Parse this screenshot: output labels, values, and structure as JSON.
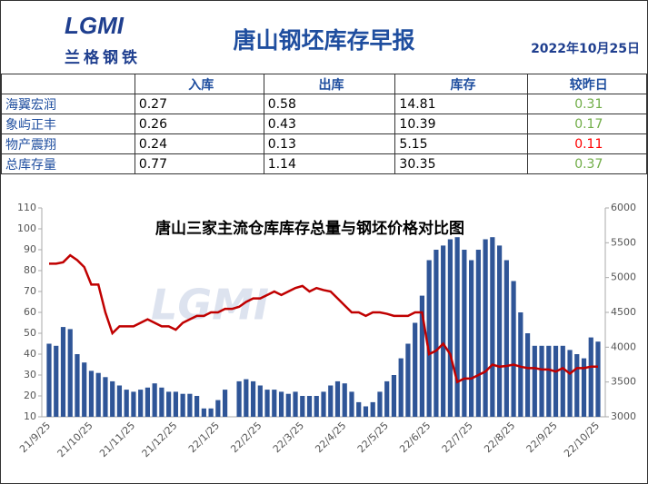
{
  "header": {
    "logo": "LGMI",
    "brand": "兰格钢铁",
    "title": "唐山钢坯库存早报",
    "date": "2022年10月25日"
  },
  "table": {
    "columns": [
      "入库",
      "出库",
      "库存",
      "较昨日"
    ],
    "rows": [
      [
        "海翼宏润",
        "0.27",
        "0.58",
        "14.81",
        "0.31"
      ],
      [
        "象屿正丰",
        "0.26",
        "0.43",
        "10.39",
        "0.17"
      ],
      [
        "物产震翔",
        "0.24",
        "0.13",
        "5.15",
        "0.11"
      ],
      [
        "总库存量",
        "0.77",
        "1.14",
        "30.35",
        "0.37"
      ]
    ],
    "change_colors": [
      "#70ad47",
      "#70ad47",
      "#ff0000",
      "#70ad47"
    ]
  },
  "chart_data": {
    "type": "combo",
    "title": "唐山三家主流仓库库存总量与钢坯价格对比图",
    "watermark": "LGMI",
    "categories": [
      "21/9/25",
      null,
      null,
      null,
      null,
      null,
      "21/10/25",
      null,
      null,
      null,
      null,
      null,
      "21/11/25",
      null,
      null,
      null,
      null,
      null,
      "21/12/25",
      null,
      null,
      null,
      null,
      null,
      "22/1/25",
      null,
      null,
      null,
      null,
      null,
      "22/2/25",
      null,
      null,
      null,
      null,
      null,
      "22/3/25",
      null,
      null,
      null,
      null,
      null,
      "22/4/25",
      null,
      null,
      null,
      null,
      null,
      "22/5/25",
      null,
      null,
      null,
      null,
      null,
      "22/6/25",
      null,
      null,
      null,
      null,
      null,
      "22/7/25",
      null,
      null,
      null,
      null,
      null,
      "22/8/25",
      null,
      null,
      null,
      null,
      null,
      "22/9/25",
      null,
      null,
      null,
      null,
      null,
      "22/10/25"
    ],
    "series": [
      {
        "type": "bar",
        "color": "#2f5597",
        "values": [
          45,
          44,
          53,
          52,
          40,
          36,
          32,
          31,
          29,
          27,
          25,
          23,
          22,
          23,
          24,
          26,
          24,
          22,
          22,
          21,
          21,
          20,
          14,
          14,
          18,
          23,
          null,
          27,
          28,
          27,
          25,
          23,
          23,
          22,
          21,
          22,
          20,
          20,
          20,
          22,
          25,
          27,
          26,
          22,
          17,
          15,
          17,
          22,
          27,
          30,
          38,
          45,
          55,
          68,
          85,
          90,
          92,
          95,
          96,
          90,
          85,
          90,
          95,
          96,
          92,
          85,
          75,
          60,
          50,
          44,
          44,
          44,
          44,
          44,
          42,
          40,
          38,
          48,
          46
        ]
      },
      {
        "type": "line",
        "axis": "y2",
        "color": "#c00000",
        "values": [
          5200,
          5200,
          5220,
          5320,
          5250,
          5150,
          4900,
          4900,
          4500,
          4200,
          4300,
          4300,
          4300,
          4350,
          4400,
          4350,
          4300,
          4300,
          4250,
          4350,
          4400,
          4450,
          4450,
          4500,
          4500,
          4550,
          4550,
          4580,
          4650,
          4700,
          4700,
          4750,
          4800,
          4750,
          4800,
          4850,
          4880,
          4800,
          4850,
          4820,
          4800,
          4700,
          4600,
          4500,
          4500,
          4450,
          4500,
          4500,
          4480,
          4450,
          4450,
          4450,
          4500,
          4500,
          3900,
          3950,
          4050,
          3900,
          3500,
          3550,
          3550,
          3600,
          3650,
          3750,
          3720,
          3730,
          3750,
          3720,
          3700,
          3700,
          3680,
          3680,
          3650,
          3700,
          3620,
          3700,
          3700,
          3720,
          3720
        ]
      }
    ],
    "ylim": [
      10,
      110
    ],
    "yticks": [
      10,
      20,
      30,
      40,
      50,
      60,
      70,
      80,
      90,
      100,
      110
    ],
    "y2lim": [
      3000,
      6000
    ],
    "y2ticks": [
      3000,
      3500,
      4000,
      4500,
      5000,
      5500,
      6000
    ]
  }
}
